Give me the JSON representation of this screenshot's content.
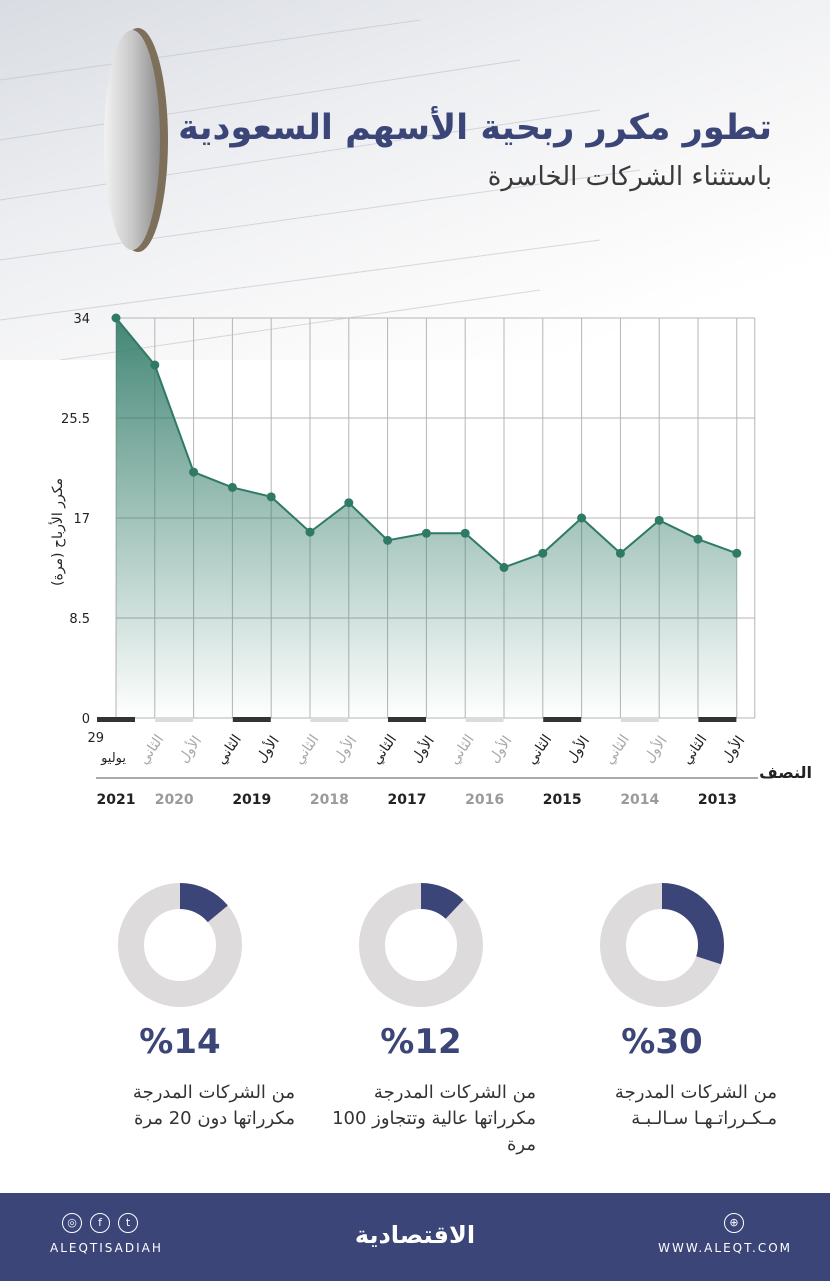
{
  "header": {
    "title": "تطور مكرر ربحية الأسهم السعودية",
    "subtitle": "باستثناء الشركات الخاسرة"
  },
  "chart_data": {
    "type": "area",
    "ylabel": "مكرر الأرباح (مرة)",
    "xlabel": "النصف",
    "yticks": [
      "34",
      "25.5",
      "17",
      "8.5",
      "0"
    ],
    "ylim": [
      0,
      34
    ],
    "grid": true,
    "first_point_label": "29 يوليو",
    "x": [
      "29 يوليو 2021",
      "الثاني 2020",
      "الأول 2020",
      "الثاني 2019",
      "الأول 2019",
      "الثاني 2018",
      "الأول 2018",
      "الثاني 2017",
      "الأول 2017",
      "الثاني 2016",
      "الأول 2016",
      "الثاني 2015",
      "الأول 2015",
      "الثاني 2014",
      "الأول 2014",
      "الثاني 2013",
      "الأول 2013"
    ],
    "values": [
      34,
      30,
      20.9,
      19.6,
      18.8,
      15.8,
      18.3,
      15.1,
      15.7,
      15.7,
      12.8,
      14,
      17,
      14,
      16.8,
      15.2,
      14
    ],
    "half_labels": [
      "الثاني",
      "الأول",
      "الثاني",
      "الأول",
      "الثاني",
      "الأول",
      "الثاني",
      "الأول",
      "الثاني",
      "الأول",
      "الثاني",
      "الأول",
      "الثاني",
      "الأول",
      "الثاني",
      "الأول"
    ],
    "years": [
      "2021",
      "2020",
      "2019",
      "2018",
      "2017",
      "2016",
      "2015",
      "2014",
      "2013"
    ],
    "colors": {
      "line": "#2f7a66",
      "fill": "#2f7a66",
      "dark_tick": "#333333",
      "light_tick": "#dcdcdc"
    }
  },
  "stats": [
    {
      "value": "%30",
      "fraction": 0.3,
      "text": "من الشركات المدرجة مـكـرراتـهـا سـالـبـة"
    },
    {
      "value": "%12",
      "fraction": 0.12,
      "text": "من الشركات المدرجة مكرراتها عالية وتتجاوز 100 مرة"
    },
    {
      "value": "%14",
      "fraction": 0.14,
      "text": "من الشركات المدرجة مكرراتها دون 20 مرة"
    }
  ],
  "donut_colors": {
    "fill": "#3b4577",
    "track": "#dddbdc"
  },
  "footer": {
    "handle": "ALEQTISADIAH",
    "logo": "الاقتصادية",
    "url": "WWW.ALEQT.COM",
    "icons": [
      "instagram-icon",
      "facebook-icon",
      "twitter-icon",
      "web-icon"
    ]
  }
}
